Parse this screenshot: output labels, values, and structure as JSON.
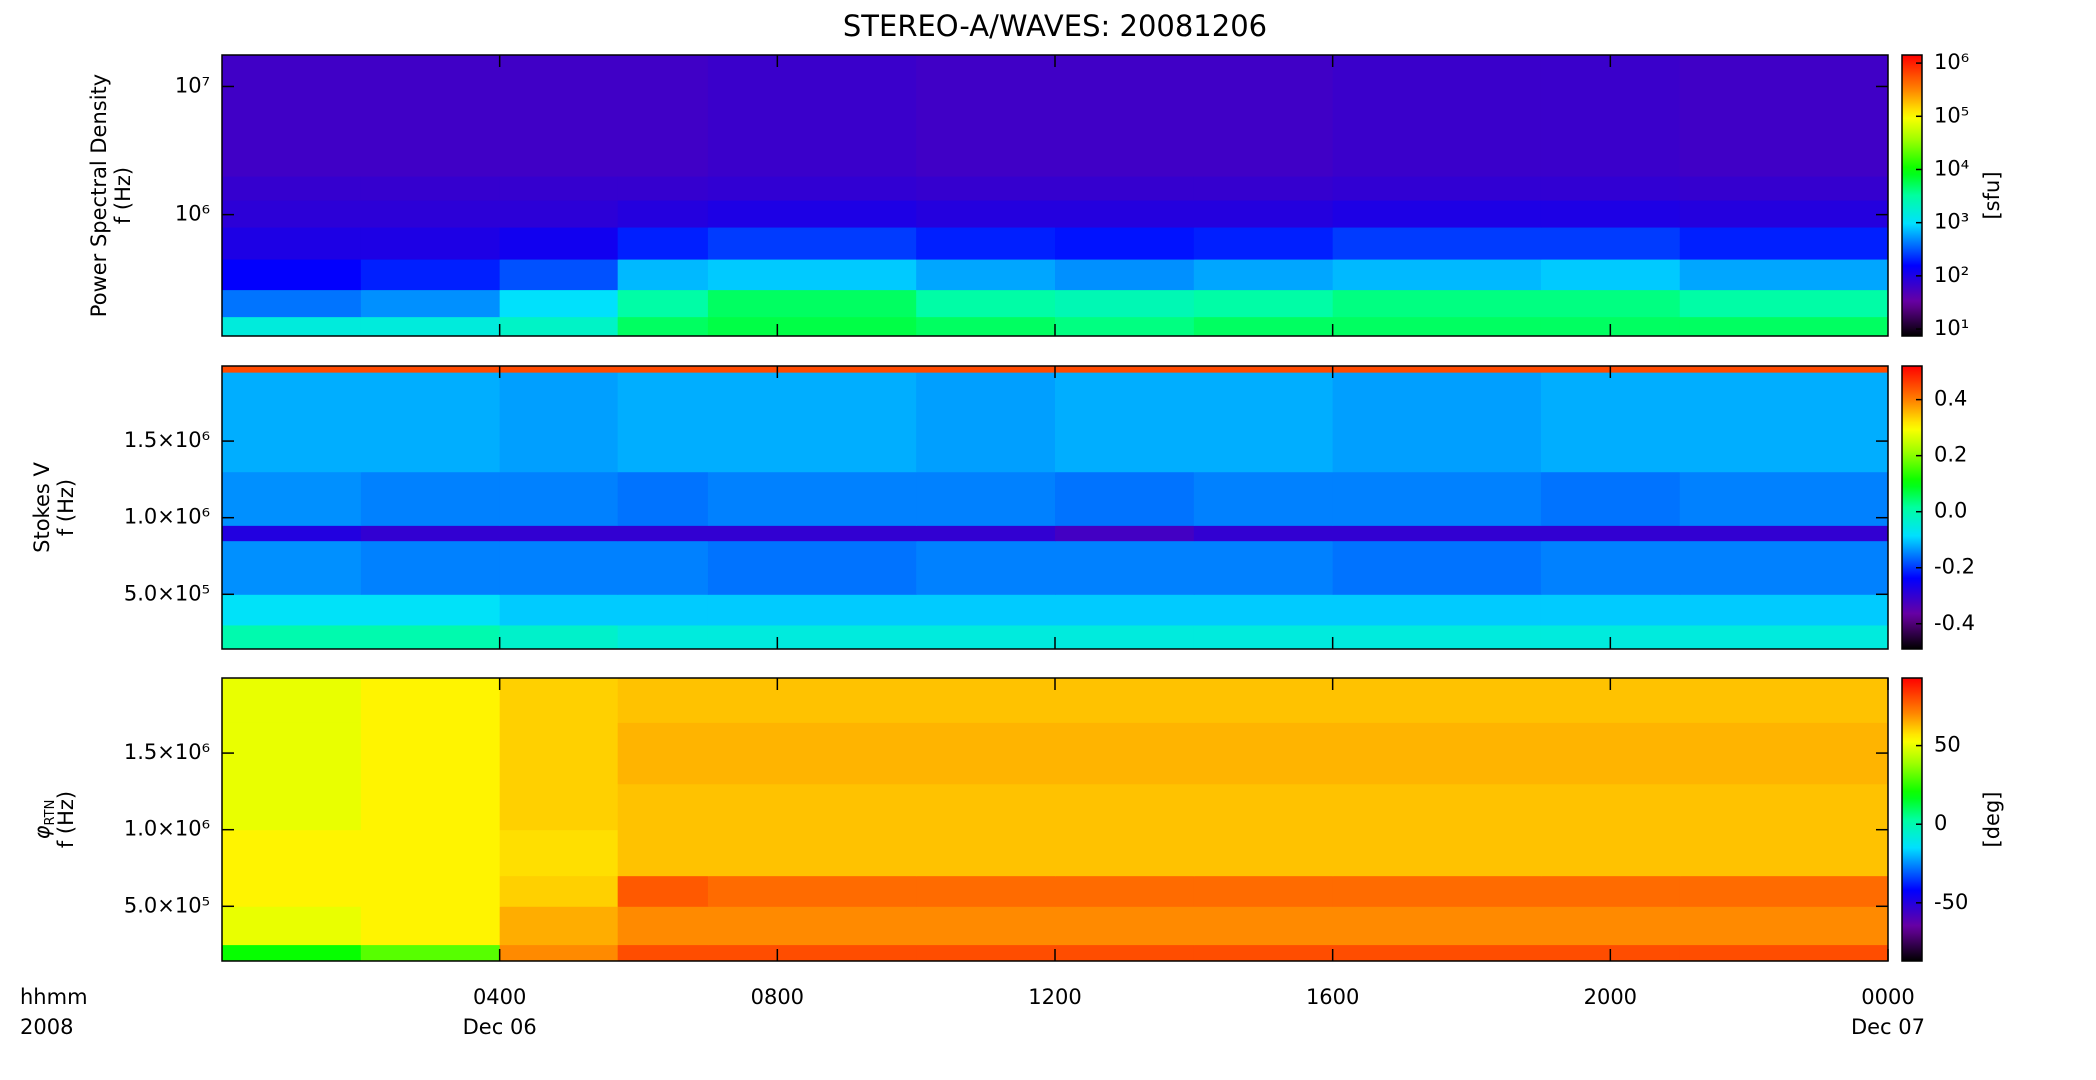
{
  "chart_data": [
    {
      "type": "heatmap",
      "title": "STEREO-A/WAVES: 20081206",
      "ylabel": [
        "Power Spectral Density",
        "f (Hz)"
      ],
      "colormap": "rainbow",
      "clog": true,
      "clim": [
        7.4,
        1420000
      ],
      "clabel": "[sfu]",
      "cticks": [
        {
          "value": 10,
          "label": "10¹"
        },
        {
          "value": 100,
          "label": "10²"
        },
        {
          "value": 1000,
          "label": "10³"
        },
        {
          "value": 10000,
          "label": "10⁴"
        },
        {
          "value": 100000,
          "label": "10⁵"
        },
        {
          "value": 1000000,
          "label": "10⁶"
        }
      ],
      "ylog": true,
      "ylim": [
        113000,
        17600000
      ],
      "yticks": [
        {
          "value": 1000000,
          "label": "10⁶"
        },
        {
          "value": 10000000,
          "label": "10⁷"
        }
      ],
      "xlim": [
        0,
        24
      ],
      "xticks": [
        4,
        8,
        12,
        16,
        20
      ],
      "x": [
        0,
        2,
        4,
        5.7,
        7,
        10,
        12,
        14,
        16,
        19,
        21,
        24
      ],
      "y": [
        113000,
        160000,
        260000,
        450000,
        800000,
        1300000,
        2000000,
        17600000
      ],
      "z": [
        [
          1500,
          1500,
          2000,
          5000,
          6000,
          5000,
          4000,
          5000,
          5000,
          5000,
          5000
        ],
        [
          400,
          500,
          1000,
          3000,
          5000,
          3000,
          2500,
          3000,
          4000,
          4000,
          3000
        ],
        [
          150,
          200,
          300,
          700,
          800,
          600,
          500,
          600,
          700,
          800,
          600
        ],
        [
          100,
          100,
          120,
          200,
          250,
          200,
          180,
          200,
          250,
          250,
          200
        ],
        [
          80,
          80,
          80,
          90,
          100,
          90,
          90,
          90,
          100,
          100,
          90
        ],
        [
          70,
          70,
          70,
          70,
          75,
          70,
          70,
          70,
          75,
          75,
          70
        ],
        [
          60,
          60,
          60,
          60,
          65,
          60,
          60,
          60,
          65,
          65,
          60
        ]
      ]
    },
    {
      "type": "heatmap",
      "ylabel": [
        "Stokes V",
        "f (Hz)"
      ],
      "colormap": "rainbow",
      "clog": false,
      "clim": [
        -0.49,
        0.52
      ],
      "cticks": [
        -0.4,
        -0.2,
        {
          "value": 0,
          "label": "0.0"
        },
        0.2,
        0.4
      ],
      "ylog": false,
      "ylim": [
        143000,
        1990000
      ],
      "yticks": [
        {
          "value": 500000,
          "label": "5.0×10⁵"
        },
        {
          "value": 1000000,
          "label": "1.0×10⁶"
        },
        {
          "value": 1500000,
          "label": "1.5×10⁶"
        }
      ],
      "xlim": [
        0,
        24
      ],
      "xticks": [
        4,
        8,
        12,
        16,
        20
      ],
      "x": [
        0,
        2,
        4,
        5.7,
        7,
        10,
        12,
        14,
        16,
        19,
        21,
        24
      ],
      "y": [
        143000,
        300000,
        500000,
        850000,
        950000,
        1300000,
        1950000,
        1990000
      ],
      "z": [
        [
          0.0,
          0.0,
          -0.03,
          -0.05,
          -0.05,
          -0.05,
          -0.05,
          -0.05,
          -0.05,
          -0.05,
          -0.05
        ],
        [
          -0.08,
          -0.08,
          -0.1,
          -0.1,
          -0.1,
          -0.1,
          -0.1,
          -0.1,
          -0.1,
          -0.1,
          -0.1
        ],
        [
          -0.14,
          -0.15,
          -0.15,
          -0.15,
          -0.16,
          -0.15,
          -0.15,
          -0.15,
          -0.16,
          -0.15,
          -0.15
        ],
        [
          -0.28,
          -0.3,
          -0.3,
          -0.3,
          -0.3,
          -0.3,
          -0.32,
          -0.3,
          -0.3,
          -0.3,
          -0.3
        ],
        [
          -0.14,
          -0.15,
          -0.15,
          -0.16,
          -0.15,
          -0.15,
          -0.16,
          -0.15,
          -0.15,
          -0.16,
          -0.15
        ],
        [
          -0.12,
          -0.12,
          -0.13,
          -0.12,
          -0.12,
          -0.13,
          -0.12,
          -0.12,
          -0.13,
          -0.12,
          -0.12
        ],
        [
          0.45,
          0.45,
          0.45,
          0.45,
          0.45,
          0.45,
          0.45,
          0.45,
          0.45,
          0.45,
          0.45
        ]
      ]
    },
    {
      "type": "heatmap",
      "ylabel": [
        "φ",
        "RTN",
        "f (Hz)"
      ],
      "colormap": "rainbow",
      "clog": false,
      "clim": [
        -87,
        93
      ],
      "clabel": "[deg]",
      "cticks": [
        -50,
        0,
        50
      ],
      "ylog": false,
      "ylim": [
        143000,
        1990000
      ],
      "yticks": [
        {
          "value": 500000,
          "label": "5.0×10⁵"
        },
        {
          "value": 1000000,
          "label": "1.0×10⁶"
        },
        {
          "value": 1500000,
          "label": "1.5×10⁶"
        }
      ],
      "xlim": [
        0,
        24
      ],
      "xticks": [
        {
          "value": 4,
          "label": "0400"
        },
        {
          "value": 8,
          "label": "0800"
        },
        {
          "value": 12,
          "label": "1200"
        },
        {
          "value": 16,
          "label": "1600"
        },
        {
          "value": 20,
          "label": "2000"
        },
        {
          "value": 24,
          "label": "0000"
        }
      ],
      "xdates": [
        {
          "value": 4,
          "label": "Dec 06"
        },
        {
          "value": 24,
          "label": "Dec 07"
        }
      ],
      "xlabel": [
        "hhmm",
        "2008"
      ],
      "x": [
        0,
        2,
        4,
        5.7,
        7,
        10,
        12,
        14,
        16,
        19,
        21,
        24
      ],
      "y": [
        143000,
        250000,
        500000,
        700000,
        1000000,
        1300000,
        1700000,
        1990000
      ],
      "z": [
        [
          20,
          30,
          70,
          80,
          80,
          80,
          80,
          80,
          80,
          80,
          80
        ],
        [
          50,
          55,
          65,
          70,
          70,
          70,
          70,
          70,
          70,
          70,
          70
        ],
        [
          55,
          55,
          60,
          78,
          75,
          75,
          75,
          75,
          75,
          75,
          75
        ],
        [
          55,
          55,
          58,
          62,
          62,
          62,
          62,
          62,
          62,
          62,
          62
        ],
        [
          50,
          55,
          60,
          62,
          62,
          62,
          62,
          62,
          62,
          62,
          62
        ],
        [
          50,
          55,
          60,
          64,
          64,
          64,
          64,
          64,
          64,
          64,
          64
        ],
        [
          50,
          55,
          60,
          62,
          62,
          62,
          62,
          62,
          62,
          62,
          62
        ]
      ]
    }
  ]
}
